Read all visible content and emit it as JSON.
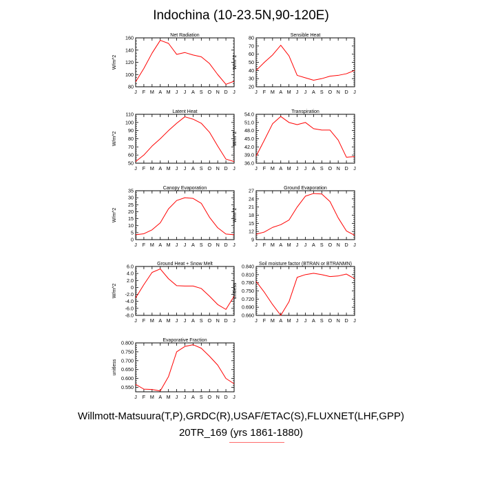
{
  "title": "Indochina (10-23.5N,90-120E)",
  "footer": {
    "line1": "Willmott-Matsuura(T,P),GRDC(R),USAF/ETAC(S),FLUXNET(LHF,GPP)",
    "line2": "20TR_169 (yrs 1861-1880)"
  },
  "colors": {
    "line": "#ff0000",
    "axis": "#000000"
  },
  "chart_data": [
    {
      "type": "line",
      "title": "Net Radiation",
      "ylabel": "W/m^2",
      "categories": [
        "J",
        "F",
        "M",
        "A",
        "M",
        "J",
        "J",
        "A",
        "S",
        "O",
        "N",
        "D",
        "J"
      ],
      "values": [
        88,
        110,
        135,
        156,
        151,
        133,
        136,
        132,
        129,
        118,
        100,
        84,
        89
      ],
      "ylim": [
        80,
        160
      ],
      "yticks": [
        "80",
        "100",
        "120",
        "140",
        "160"
      ]
    },
    {
      "type": "line",
      "title": "Sensible Heat",
      "ylabel": "W/m^2",
      "categories": [
        "J",
        "F",
        "M",
        "A",
        "M",
        "J",
        "J",
        "A",
        "S",
        "O",
        "N",
        "D",
        "J"
      ],
      "values": [
        40,
        50,
        59,
        71,
        58,
        34,
        31,
        28,
        30,
        33,
        34,
        36,
        40
      ],
      "ylim": [
        20,
        80
      ],
      "yticks": [
        "20",
        "30",
        "40",
        "50",
        "60",
        "70",
        "80"
      ]
    },
    {
      "type": "line",
      "title": "Latent Heat",
      "ylabel": "W/m^2",
      "categories": [
        "J",
        "F",
        "M",
        "A",
        "M",
        "J",
        "J",
        "A",
        "S",
        "O",
        "N",
        "D",
        "J"
      ],
      "values": [
        52,
        60,
        71,
        80,
        90,
        99,
        107,
        104,
        99,
        88,
        71,
        55,
        52
      ],
      "ylim": [
        50,
        110
      ],
      "yticks": [
        "50",
        "60",
        "70",
        "80",
        "90",
        "100",
        "110"
      ]
    },
    {
      "type": "line",
      "title": "Transpiration",
      "ylabel": "W/m^2",
      "categories": [
        "J",
        "F",
        "M",
        "A",
        "M",
        "J",
        "J",
        "A",
        "S",
        "O",
        "N",
        "D",
        "J"
      ],
      "values": [
        38.6,
        44.5,
        50.5,
        53.2,
        51.0,
        50.2,
        51.0,
        48.7,
        48.2,
        48.2,
        44.5,
        38.2,
        38.4
      ],
      "ylim": [
        36,
        54
      ],
      "yticks": [
        "36.0",
        "39.0",
        "42.0",
        "45.0",
        "48.0",
        "51.0",
        "54.0"
      ]
    },
    {
      "type": "line",
      "title": "Canopy Evaporation",
      "ylabel": "W/m^2",
      "categories": [
        "J",
        "F",
        "M",
        "A",
        "M",
        "J",
        "J",
        "A",
        "S",
        "O",
        "N",
        "D",
        "J"
      ],
      "values": [
        3.5,
        4.2,
        7,
        12,
        22,
        28,
        30,
        29.5,
        26,
        16,
        8.5,
        4,
        3.5
      ],
      "ylim": [
        0,
        35
      ],
      "yticks": [
        "0",
        "5",
        "10",
        "15",
        "20",
        "25",
        "30",
        "35"
      ]
    },
    {
      "type": "line",
      "title": "Ground Evaporation",
      "ylabel": "W/m^2",
      "categories": [
        "J",
        "F",
        "M",
        "A",
        "M",
        "J",
        "J",
        "A",
        "S",
        "O",
        "N",
        "D",
        "J"
      ],
      "values": [
        11,
        11.8,
        13.5,
        14.5,
        16.2,
        21,
        25,
        26,
        25.8,
        23,
        17,
        12.2,
        10.6
      ],
      "ylim": [
        9,
        27
      ],
      "yticks": [
        "9",
        "12",
        "15",
        "18",
        "21",
        "24",
        "27"
      ]
    },
    {
      "type": "line",
      "title": "Ground Heat + Snow Melt",
      "ylabel": "W/m^2",
      "categories": [
        "J",
        "F",
        "M",
        "A",
        "M",
        "J",
        "J",
        "A",
        "S",
        "O",
        "N",
        "D",
        "J"
      ],
      "values": [
        -3,
        0.8,
        4.3,
        5.3,
        2.5,
        0.5,
        0.4,
        0.4,
        -0.3,
        -2.5,
        -4.9,
        -6.3,
        -2.5
      ],
      "ylim": [
        -8,
        6
      ],
      "yticks": [
        "-8.0",
        "-6.0",
        "-4.0",
        "-2.0",
        "0",
        "2.0",
        "4.0",
        "6.0"
      ]
    },
    {
      "type": "line",
      "title": "Soil moisture factor (BTRAN or BTRANMN)",
      "ylabel": "unitless",
      "categories": [
        "J",
        "F",
        "M",
        "A",
        "M",
        "J",
        "J",
        "A",
        "S",
        "O",
        "N",
        "D",
        "J"
      ],
      "values": [
        0.785,
        0.745,
        0.7,
        0.66,
        0.71,
        0.8,
        0.81,
        0.815,
        0.81,
        0.803,
        0.805,
        0.812,
        0.795
      ],
      "ylim": [
        0.66,
        0.84
      ],
      "yticks": [
        "0.660",
        "0.690",
        "0.720",
        "0.750",
        "0.780",
        "0.810",
        "0.840"
      ]
    },
    {
      "type": "line",
      "title": "Evaporative Fraction",
      "ylabel": "unitless",
      "categories": [
        "J",
        "F",
        "M",
        "A",
        "M",
        "J",
        "J",
        "A",
        "S",
        "O",
        "N",
        "D",
        "J"
      ],
      "values": [
        0.567,
        0.54,
        0.538,
        0.53,
        0.61,
        0.75,
        0.78,
        0.79,
        0.77,
        0.725,
        0.675,
        0.6,
        0.57
      ],
      "ylim": [
        0.525,
        0.8
      ],
      "yticks": [
        "0.550",
        "0.600",
        "0.650",
        "0.700",
        "0.750",
        "0.800"
      ]
    }
  ]
}
